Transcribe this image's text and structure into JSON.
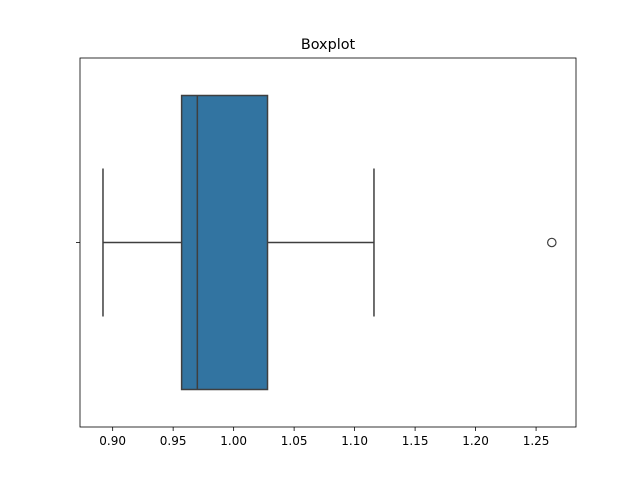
{
  "chart_data": {
    "type": "boxplot",
    "title": "Boxplot",
    "xlabel": "",
    "ylabel": "",
    "orientation": "horizontal",
    "xlim": [
      0.873,
      1.283
    ],
    "xticks": [
      0.9,
      0.95,
      1.0,
      1.05,
      1.1,
      1.15,
      1.2,
      1.25
    ],
    "xtick_labels": [
      "0.90",
      "0.95",
      "1.00",
      "1.05",
      "1.10",
      "1.15",
      "1.20",
      "1.25"
    ],
    "grid": false,
    "legend": "none",
    "box": {
      "whisker_low": 0.892,
      "q1": 0.957,
      "median": 0.97,
      "q3": 1.028,
      "whisker_high": 1.116,
      "outliers": [
        1.263
      ]
    },
    "colors": {
      "box_fill": "#3274a1",
      "line": "#3f3f3f",
      "axis": "#000000"
    }
  }
}
